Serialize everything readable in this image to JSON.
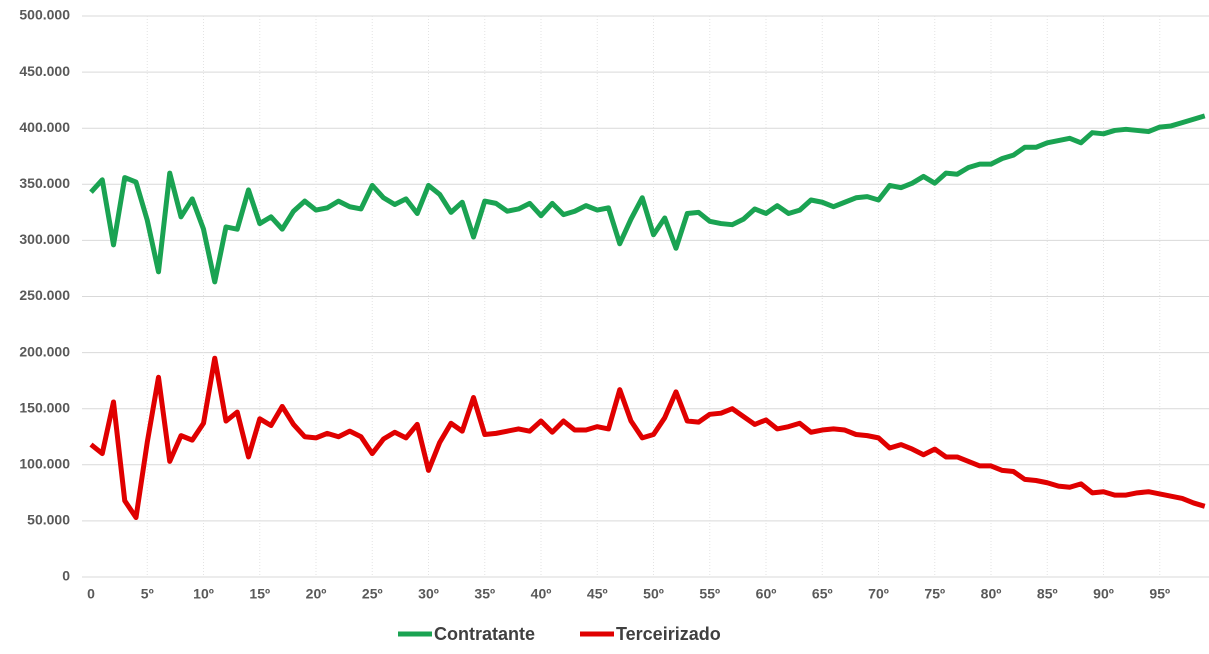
{
  "chart_data": {
    "type": "line",
    "categories": [
      "0",
      null,
      null,
      null,
      null,
      "5º",
      null,
      null,
      null,
      null,
      "10º",
      null,
      null,
      null,
      null,
      "15º",
      null,
      null,
      null,
      null,
      "20º",
      null,
      null,
      null,
      null,
      "25º",
      null,
      null,
      null,
      null,
      "30º",
      null,
      null,
      null,
      null,
      "35º",
      null,
      null,
      null,
      null,
      "40º",
      null,
      null,
      null,
      null,
      "45º",
      null,
      null,
      null,
      null,
      "50º",
      null,
      null,
      null,
      null,
      "55º",
      null,
      null,
      null,
      null,
      "60º",
      null,
      null,
      null,
      null,
      "65º",
      null,
      null,
      null,
      null,
      "70º",
      null,
      null,
      null,
      null,
      "75º",
      null,
      null,
      null,
      null,
      "80º",
      null,
      null,
      null,
      null,
      "85º",
      null,
      null,
      null,
      null,
      "90º",
      null,
      null,
      null,
      null,
      "95º",
      null,
      null,
      null,
      null
    ],
    "series": [
      {
        "name": "Contratante",
        "color": "#1aa352",
        "values": [
          343000,
          354000,
          296000,
          356000,
          352000,
          318000,
          272000,
          360000,
          321000,
          337000,
          310000,
          263000,
          312000,
          310000,
          345000,
          315000,
          321000,
          310000,
          326000,
          335000,
          327000,
          329000,
          335000,
          330000,
          328000,
          349000,
          338000,
          332000,
          337000,
          324000,
          349000,
          341000,
          325000,
          334000,
          303000,
          335000,
          333000,
          326000,
          328000,
          333000,
          322000,
          333000,
          323000,
          326000,
          331000,
          327000,
          329000,
          297000,
          319000,
          338000,
          305000,
          320000,
          293000,
          324000,
          325000,
          317000,
          315000,
          314000,
          319000,
          328000,
          324000,
          331000,
          324000,
          327000,
          336000,
          334000,
          330000,
          334000,
          338000,
          339000,
          336000,
          349000,
          347000,
          351000,
          357000,
          351000,
          360000,
          359000,
          365000,
          368000,
          368000,
          373000,
          376000,
          383000,
          383000,
          387000,
          389000,
          391000,
          387000,
          396000,
          395000,
          398000,
          399000,
          398000,
          397000,
          401000,
          402000,
          405000,
          408000,
          411000
        ]
      },
      {
        "name": "Terceirizado",
        "color": "#e00000",
        "values": [
          118000,
          110000,
          156000,
          68000,
          53000,
          120000,
          178000,
          103000,
          126000,
          122000,
          137000,
          195000,
          139000,
          147000,
          107000,
          141000,
          135000,
          152000,
          136000,
          125000,
          124000,
          128000,
          125000,
          130000,
          125000,
          110000,
          123000,
          129000,
          124000,
          136000,
          95000,
          120000,
          137000,
          130000,
          160000,
          127000,
          128000,
          130000,
          132000,
          130000,
          139000,
          129000,
          139000,
          131000,
          131000,
          134000,
          132000,
          167000,
          139000,
          124000,
          127000,
          142000,
          165000,
          139000,
          138000,
          145000,
          146000,
          150000,
          143000,
          136000,
          140000,
          132000,
          134000,
          137000,
          129000,
          131000,
          132000,
          131000,
          127000,
          126000,
          124000,
          115000,
          118000,
          114000,
          109000,
          114000,
          107000,
          107000,
          103000,
          99000,
          99000,
          95000,
          94000,
          87000,
          86000,
          84000,
          81000,
          80000,
          83000,
          75000,
          76000,
          73000,
          73000,
          75000,
          76000,
          74000,
          72000,
          70000,
          66000,
          63000
        ]
      }
    ],
    "ylim": [
      0,
      500000
    ],
    "yticks": [
      0,
      {
        "value": 50000,
        "label": "50.000"
      },
      {
        "value": 100000,
        "label": "100.000"
      },
      {
        "value": 150000,
        "label": "150.000"
      },
      {
        "value": 200000,
        "label": "200.000"
      },
      {
        "value": 250000,
        "label": "250.000"
      },
      {
        "value": 300000,
        "label": "300.000"
      },
      {
        "value": 350000,
        "label": "350.000"
      },
      {
        "value": 400000,
        "label": "400.000"
      },
      {
        "value": 450000,
        "label": "450.000"
      },
      {
        "value": 500000,
        "label": "500.000"
      }
    ],
    "grid": true,
    "legend": "bottom"
  }
}
